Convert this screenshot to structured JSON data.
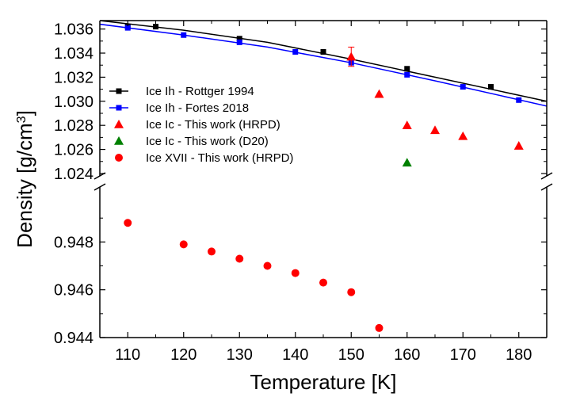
{
  "chart_data": {
    "type": "scatter",
    "xlabel": "Temperature [K]",
    "ylabel": "Density [g/cm",
    "ylabel_sup": "3",
    "ylabel_close": "]",
    "xlim": [
      105,
      185
    ],
    "xticks": [
      "110",
      "120",
      "130",
      "140",
      "150",
      "160",
      "170",
      "180"
    ],
    "xtick_values": [
      110,
      120,
      130,
      140,
      150,
      160,
      170,
      180
    ],
    "y_axis_break": true,
    "upper_ylim": [
      1.0238,
      1.0367
    ],
    "upper_yticks": [
      "1.024",
      "1.026",
      "1.028",
      "1.030",
      "1.032",
      "1.034",
      "1.036"
    ],
    "upper_ytick_values": [
      1.024,
      1.026,
      1.028,
      1.03,
      1.032,
      1.034,
      1.036
    ],
    "lower_ylim": [
      0.944,
      0.9503
    ],
    "lower_yticks": [
      "0.944",
      "0.946",
      "0.948"
    ],
    "lower_ytick_values": [
      0.944,
      0.946,
      0.948
    ],
    "legend_position": "left",
    "series": [
      {
        "name": "Ice Ih - Rottger 1994",
        "marker": "square",
        "color": "#000000",
        "line": true,
        "panel": "upper",
        "x": [
          110,
          115,
          130,
          145,
          160,
          175
        ],
        "y": [
          1.0362,
          1.0362,
          1.0352,
          1.0341,
          1.0327,
          1.0312
        ],
        "fit_x": [
          105,
          120,
          135,
          150,
          165,
          185
        ],
        "fit_y": [
          1.0367,
          1.0359,
          1.0349,
          1.0335,
          1.032,
          1.03
        ]
      },
      {
        "name": "Ice Ih - Fortes 2018",
        "marker": "square",
        "color": "#0000ff",
        "line": true,
        "panel": "upper",
        "x": [
          110,
          120,
          130,
          140,
          150,
          160,
          170,
          180
        ],
        "y": [
          1.0361,
          1.0355,
          1.0349,
          1.0341,
          1.0332,
          1.0322,
          1.0312,
          1.0301
        ],
        "fit_x": [
          105,
          120,
          135,
          150,
          165,
          185
        ],
        "fit_y": [
          1.0364,
          1.0355,
          1.0345,
          1.0332,
          1.0317,
          1.0296
        ]
      },
      {
        "name": "Ice Ic - This work (HRPD)",
        "marker": "triangle",
        "color": "#ff0000",
        "line": false,
        "panel": "upper",
        "x": [
          150,
          155,
          160,
          165,
          170,
          180
        ],
        "y": [
          1.0337,
          1.0306,
          1.028,
          1.0276,
          1.0271,
          1.0263
        ],
        "error": [
          0.0008,
          0,
          0,
          0,
          0,
          0
        ]
      },
      {
        "name": "Ice Ic - This work (D20)",
        "marker": "triangle",
        "color": "#008000",
        "line": false,
        "panel": "upper",
        "x": [
          160
        ],
        "y": [
          1.0249
        ]
      },
      {
        "name": "Ice XVII - This work (HRPD)",
        "marker": "circle",
        "color": "#ff0000",
        "line": false,
        "panel": "lower",
        "x": [
          110,
          120,
          125,
          130,
          135,
          140,
          145,
          150,
          155
        ],
        "y": [
          0.9488,
          0.9479,
          0.9476,
          0.9473,
          0.947,
          0.9467,
          0.9463,
          0.9459,
          0.9444
        ]
      }
    ]
  }
}
